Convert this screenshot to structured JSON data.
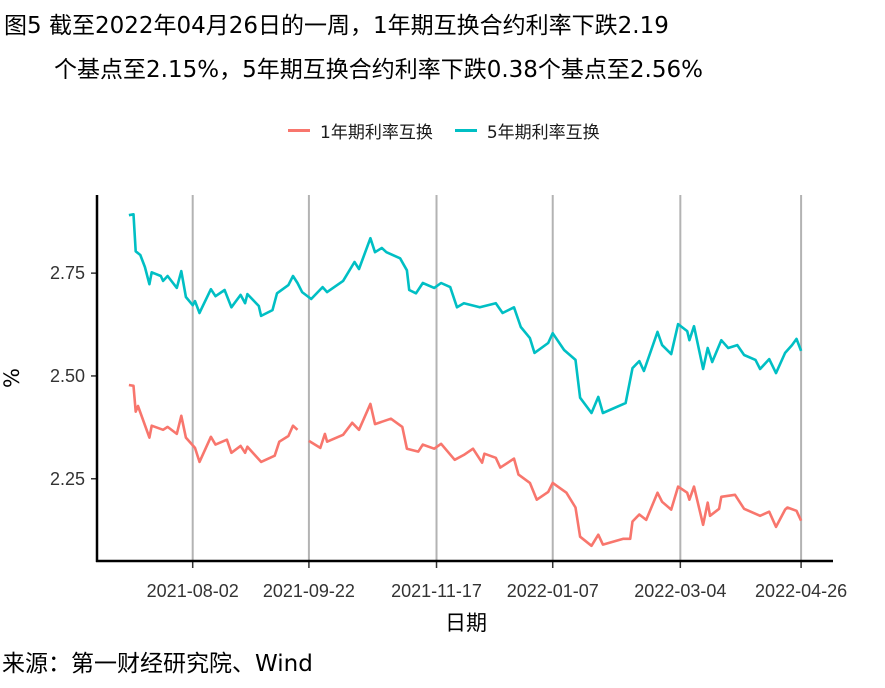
{
  "title": {
    "line1": "图5  截至2022年04月26日的一周，1年期互换合约利率下跌2.19",
    "line2": "个基点至2.15%，5年期互换合约利率下跌0.38个基点至2.56%"
  },
  "source": "来源：第一财经研究院、Wind",
  "chart_data": {
    "type": "line",
    "title": "",
    "xlabel": "日期",
    "ylabel": "%",
    "xlim": [
      "2021-06-21",
      "2022-05-10"
    ],
    "ylim": [
      2.05,
      2.94
    ],
    "x_ticks": [
      "2021-08-02",
      "2021-09-22",
      "2021-11-17",
      "2022-01-07",
      "2022-03-04",
      "2022-04-26"
    ],
    "y_ticks": [
      2.25,
      2.5,
      2.75
    ],
    "y_tick_labels": [
      "2.25",
      "2.50",
      "2.75"
    ],
    "grid": "vertical major lines",
    "legend_position": "top",
    "series": [
      {
        "name": "1年期利率互换",
        "color": "#F8766D",
        "points": [
          [
            "2021-07-05",
            2.478
          ],
          [
            "2021-07-07",
            2.476
          ],
          [
            "2021-07-08",
            2.413
          ],
          [
            "2021-07-09",
            2.427
          ],
          [
            "2021-07-14",
            2.35
          ],
          [
            "2021-07-15",
            2.379
          ],
          [
            "2021-07-20",
            2.369
          ],
          [
            "2021-07-22",
            2.376
          ],
          [
            "2021-07-26",
            2.359
          ],
          [
            "2021-07-28",
            2.403
          ],
          [
            "2021-07-30",
            2.35
          ],
          [
            "2021-08-03",
            2.325
          ],
          [
            "2021-08-05",
            2.291
          ],
          [
            "2021-08-10",
            2.352
          ],
          [
            "2021-08-12",
            2.333
          ],
          [
            "2021-08-17",
            2.345
          ],
          [
            "2021-08-19",
            2.313
          ],
          [
            "2021-08-23",
            2.33
          ],
          [
            "2021-08-25",
            2.313
          ],
          [
            "2021-08-26",
            2.328
          ],
          [
            "2021-09-01",
            2.291
          ],
          [
            "2021-09-07",
            2.306
          ],
          [
            "2021-09-09",
            2.34
          ],
          [
            "2021-09-13",
            2.354
          ],
          [
            "2021-09-15",
            2.379
          ],
          [
            "2021-09-17",
            2.369
          ],
          null,
          [
            "2021-09-22",
            2.342
          ],
          [
            "2021-09-27",
            2.325
          ],
          [
            "2021-09-29",
            2.359
          ],
          [
            "2021-09-30",
            2.34
          ],
          [
            "2021-10-07",
            2.357
          ],
          [
            "2021-10-11",
            2.386
          ],
          [
            "2021-10-14",
            2.369
          ],
          [
            "2021-10-19",
            2.432
          ],
          [
            "2021-10-21",
            2.383
          ],
          [
            "2021-10-28",
            2.396
          ],
          [
            "2021-11-02",
            2.376
          ],
          [
            "2021-11-04",
            2.323
          ],
          [
            "2021-11-09",
            2.316
          ],
          [
            "2021-11-11",
            2.333
          ],
          [
            "2021-11-16",
            2.323
          ],
          [
            "2021-11-19",
            2.335
          ],
          [
            "2021-11-25",
            2.296
          ],
          [
            "2021-11-29",
            2.308
          ],
          [
            "2021-12-03",
            2.323
          ],
          [
            "2021-12-07",
            2.289
          ],
          [
            "2021-12-08",
            2.311
          ],
          [
            "2021-12-13",
            2.301
          ],
          [
            "2021-12-15",
            2.277
          ],
          [
            "2021-12-21",
            2.299
          ],
          [
            "2021-12-23",
            2.26
          ],
          [
            "2021-12-28",
            2.24
          ],
          [
            "2021-12-31",
            2.199
          ],
          [
            "2022-01-05",
            2.218
          ],
          [
            "2022-01-07",
            2.24
          ],
          [
            "2022-01-13",
            2.216
          ],
          [
            "2022-01-17",
            2.18
          ],
          [
            "2022-01-19",
            2.109
          ],
          [
            "2022-01-24",
            2.087
          ],
          [
            "2022-01-27",
            2.114
          ],
          [
            "2022-01-29",
            2.09
          ],
          [
            "2022-02-07",
            2.104
          ],
          [
            "2022-02-10",
            2.104
          ],
          [
            "2022-02-11",
            2.146
          ],
          [
            "2022-02-14",
            2.163
          ],
          [
            "2022-02-17",
            2.15
          ],
          [
            "2022-02-22",
            2.216
          ],
          [
            "2022-02-24",
            2.194
          ],
          [
            "2022-02-28",
            2.175
          ],
          [
            "2022-03-03",
            2.231
          ],
          [
            "2022-03-07",
            2.216
          ],
          [
            "2022-03-08",
            2.199
          ],
          [
            "2022-03-10",
            2.231
          ],
          [
            "2022-03-14",
            2.138
          ],
          [
            "2022-03-16",
            2.192
          ],
          [
            "2022-03-17",
            2.16
          ],
          [
            "2022-03-21",
            2.177
          ],
          [
            "2022-03-22",
            2.206
          ],
          [
            "2022-03-28",
            2.211
          ],
          [
            "2022-04-01",
            2.177
          ],
          [
            "2022-04-08",
            2.16
          ],
          [
            "2022-04-12",
            2.17
          ],
          [
            "2022-04-15",
            2.133
          ],
          [
            "2022-04-19",
            2.175
          ],
          [
            "2022-04-20",
            2.18
          ],
          [
            "2022-04-24",
            2.172
          ],
          [
            "2022-04-26",
            2.148
          ]
        ]
      },
      {
        "name": "5年期利率互换",
        "color": "#00BFC4",
        "points": [
          [
            "2021-07-05",
            2.891
          ],
          [
            "2021-07-07",
            2.893
          ],
          [
            "2021-07-08",
            2.803
          ],
          [
            "2021-07-10",
            2.794
          ],
          [
            "2021-07-12",
            2.765
          ],
          [
            "2021-07-14",
            2.723
          ],
          [
            "2021-07-15",
            2.752
          ],
          [
            "2021-07-19",
            2.743
          ],
          [
            "2021-07-20",
            2.731
          ],
          [
            "2021-07-22",
            2.743
          ],
          [
            "2021-07-26",
            2.714
          ],
          [
            "2021-07-28",
            2.755
          ],
          [
            "2021-07-30",
            2.692
          ],
          [
            "2021-08-02",
            2.672
          ],
          [
            "2021-08-03",
            2.682
          ],
          [
            "2021-08-05",
            2.653
          ],
          [
            "2021-08-06",
            2.665
          ],
          [
            "2021-08-10",
            2.711
          ],
          [
            "2021-08-12",
            2.694
          ],
          [
            "2021-08-16",
            2.709
          ],
          [
            "2021-08-19",
            2.667
          ],
          [
            "2021-08-23",
            2.697
          ],
          [
            "2021-08-25",
            2.677
          ],
          [
            "2021-08-26",
            2.699
          ],
          [
            "2021-08-31",
            2.67
          ],
          [
            "2021-09-01",
            2.646
          ],
          [
            "2021-09-06",
            2.66
          ],
          [
            "2021-09-08",
            2.701
          ],
          [
            "2021-09-13",
            2.721
          ],
          [
            "2021-09-15",
            2.743
          ],
          [
            "2021-09-17",
            2.726
          ],
          [
            "2021-09-19",
            2.704
          ],
          [
            "2021-09-23",
            2.687
          ],
          [
            "2021-09-28",
            2.716
          ],
          [
            "2021-09-30",
            2.704
          ],
          [
            "2021-10-07",
            2.731
          ],
          [
            "2021-10-12",
            2.777
          ],
          [
            "2021-10-14",
            2.76
          ],
          [
            "2021-10-19",
            2.835
          ],
          [
            "2021-10-21",
            2.801
          ],
          [
            "2021-10-24",
            2.811
          ],
          [
            "2021-10-26",
            2.801
          ],
          [
            "2021-11-01",
            2.786
          ],
          [
            "2021-11-04",
            2.757
          ],
          [
            "2021-11-05",
            2.709
          ],
          [
            "2021-11-08",
            2.701
          ],
          [
            "2021-11-11",
            2.726
          ],
          [
            "2021-11-16",
            2.714
          ],
          [
            "2021-11-19",
            2.726
          ],
          [
            "2021-11-23",
            2.716
          ],
          [
            "2021-11-26",
            2.667
          ],
          [
            "2021-11-29",
            2.677
          ],
          [
            "2021-12-06",
            2.667
          ],
          [
            "2021-12-13",
            2.677
          ],
          [
            "2021-12-16",
            2.653
          ],
          [
            "2021-12-21",
            2.667
          ],
          [
            "2021-12-24",
            2.619
          ],
          [
            "2021-12-28",
            2.592
          ],
          [
            "2021-12-30",
            2.556
          ],
          [
            "2022-01-05",
            2.58
          ],
          [
            "2022-01-07",
            2.604
          ],
          [
            "2022-01-12",
            2.563
          ],
          [
            "2022-01-17",
            2.539
          ],
          [
            "2022-01-19",
            2.447
          ],
          [
            "2022-01-24",
            2.41
          ],
          [
            "2022-01-27",
            2.449
          ],
          [
            "2022-01-29",
            2.41
          ],
          [
            "2022-02-08",
            2.434
          ],
          [
            "2022-02-11",
            2.519
          ],
          [
            "2022-02-14",
            2.536
          ],
          [
            "2022-02-16",
            2.512
          ],
          [
            "2022-02-22",
            2.607
          ],
          [
            "2022-02-24",
            2.575
          ],
          [
            "2022-02-28",
            2.553
          ],
          [
            "2022-03-03",
            2.626
          ],
          [
            "2022-03-07",
            2.609
          ],
          [
            "2022-03-08",
            2.587
          ],
          [
            "2022-03-10",
            2.621
          ],
          [
            "2022-03-14",
            2.517
          ],
          [
            "2022-03-16",
            2.568
          ],
          [
            "2022-03-18",
            2.534
          ],
          [
            "2022-03-22",
            2.587
          ],
          [
            "2022-03-25",
            2.568
          ],
          [
            "2022-03-29",
            2.575
          ],
          [
            "2022-04-01",
            2.551
          ],
          [
            "2022-04-06",
            2.539
          ],
          [
            "2022-04-08",
            2.517
          ],
          [
            "2022-04-12",
            2.541
          ],
          [
            "2022-04-15",
            2.507
          ],
          [
            "2022-04-19",
            2.556
          ],
          [
            "2022-04-22",
            2.575
          ],
          [
            "2022-04-24",
            2.59
          ],
          [
            "2022-04-26",
            2.561
          ]
        ]
      }
    ]
  }
}
